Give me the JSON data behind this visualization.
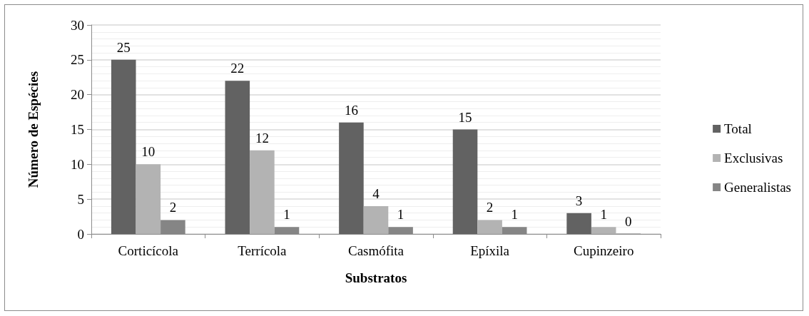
{
  "chart_data": {
    "type": "bar",
    "xlabel": "Substratos",
    "ylabel": "Número de Espécies",
    "categories": [
      "Corticícola",
      "Terrícola",
      "Casmófita",
      "Epíxila",
      "Cupinzeiro"
    ],
    "series": [
      {
        "name": "Total",
        "color": "#626262",
        "values": [
          25,
          22,
          16,
          15,
          3
        ]
      },
      {
        "name": "Exclusivas",
        "color": "#b3b3b3",
        "values": [
          10,
          12,
          4,
          2,
          1
        ]
      },
      {
        "name": "Generalistas",
        "color": "#858585",
        "values": [
          2,
          1,
          1,
          1,
          0
        ]
      }
    ],
    "ylim": [
      0,
      30
    ],
    "yticks": [
      0,
      5,
      10,
      15,
      20,
      25,
      30
    ],
    "grid": "y",
    "legend": "right",
    "data_labels": true
  }
}
